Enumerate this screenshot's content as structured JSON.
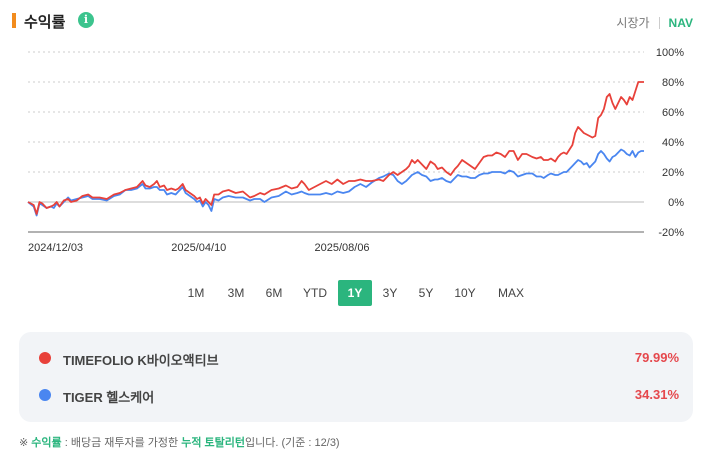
{
  "header": {
    "title": "수익률",
    "info_icon": "info-icon",
    "view_price": "시장가",
    "view_nav": "NAV"
  },
  "periods": [
    "1M",
    "3M",
    "6M",
    "YTD",
    "1Y",
    "3Y",
    "5Y",
    "10Y",
    "MAX"
  ],
  "active_period": "1Y",
  "legend": [
    {
      "name": "TIMEFOLIO K바이오액티브",
      "value": "79.99%",
      "color": "#e8413a"
    },
    {
      "name": "TIGER 헬스케어",
      "value": "34.31%",
      "color": "#4a86f0"
    }
  ],
  "footnote": {
    "mark": "※",
    "term": "수익률",
    "sep": " : ",
    "text1": "배당금 재투자를 가정한 ",
    "term2": "누적 토탈리턴",
    "text2": "입니다. (기준 : 12/3)"
  },
  "chart_data": {
    "type": "line",
    "x_tick_labels": [
      "2024/12/03",
      "2025/04/10",
      "2025/08/06"
    ],
    "y_ticks": [
      "100%",
      "80%",
      "60%",
      "40%",
      "20%",
      "0%",
      "-20%"
    ],
    "ylim": [
      -20,
      100
    ],
    "grid": true,
    "x_unit": "trading-day index (0 = 2024/12/03, 100 = 2025/04/10, 200 = 2025/08/06)",
    "series": [
      {
        "name": "TIMEFOLIO K바이오액티브",
        "color": "#e8413a",
        "points": [
          [
            0,
            0
          ],
          [
            4,
            -2
          ],
          [
            6,
            -8
          ],
          [
            8,
            0
          ],
          [
            10,
            -1
          ],
          [
            13,
            -4
          ],
          [
            16,
            -3
          ],
          [
            18,
            -2
          ],
          [
            20,
            0
          ],
          [
            22,
            -3
          ],
          [
            25,
            1
          ],
          [
            28,
            2
          ],
          [
            30,
            0
          ],
          [
            34,
            1
          ],
          [
            38,
            4
          ],
          [
            42,
            5
          ],
          [
            45,
            3
          ],
          [
            50,
            3
          ],
          [
            55,
            2
          ],
          [
            60,
            5
          ],
          [
            64,
            6
          ],
          [
            68,
            8
          ],
          [
            72,
            9
          ],
          [
            76,
            10
          ],
          [
            80,
            14
          ],
          [
            82,
            11
          ],
          [
            85,
            10
          ],
          [
            88,
            12
          ],
          [
            90,
            14
          ],
          [
            92,
            10
          ],
          [
            95,
            11
          ],
          [
            97,
            8
          ],
          [
            100,
            9
          ],
          [
            103,
            8
          ],
          [
            105,
            9
          ],
          [
            108,
            12
          ],
          [
            110,
            8
          ],
          [
            113,
            6
          ],
          [
            116,
            4
          ],
          [
            118,
            2
          ],
          [
            120,
            3
          ],
          [
            122,
            -1
          ],
          [
            124,
            2
          ],
          [
            126,
            0
          ],
          [
            128,
            -2
          ],
          [
            130,
            5
          ],
          [
            133,
            5
          ],
          [
            136,
            7
          ],
          [
            140,
            8
          ],
          [
            145,
            6
          ],
          [
            150,
            7
          ],
          [
            155,
            3
          ],
          [
            158,
            4
          ],
          [
            162,
            6
          ],
          [
            165,
            5
          ],
          [
            170,
            8
          ],
          [
            175,
            9
          ],
          [
            180,
            11
          ],
          [
            184,
            9
          ],
          [
            188,
            10
          ],
          [
            191,
            14
          ],
          [
            193,
            12
          ],
          [
            196,
            8
          ],
          [
            200,
            10
          ],
          [
            204,
            12
          ],
          [
            208,
            14
          ],
          [
            212,
            12
          ],
          [
            216,
            15
          ],
          [
            220,
            12
          ],
          [
            224,
            14
          ],
          [
            228,
            14
          ],
          [
            232,
            15
          ],
          [
            236,
            14
          ],
          [
            240,
            14
          ],
          [
            245,
            15
          ],
          [
            248,
            14
          ],
          [
            252,
            18
          ],
          [
            255,
            20
          ],
          [
            258,
            18
          ],
          [
            261,
            20
          ],
          [
            264,
            22
          ],
          [
            266,
            24
          ],
          [
            268,
            28
          ],
          [
            270,
            26
          ],
          [
            272,
            28
          ],
          [
            275,
            25
          ],
          [
            278,
            22
          ],
          [
            281,
            27
          ],
          [
            284,
            25
          ],
          [
            286,
            22
          ],
          [
            289,
            23
          ],
          [
            292,
            20
          ],
          [
            295,
            18
          ],
          [
            298,
            22
          ],
          [
            300,
            24
          ],
          [
            303,
            28
          ],
          [
            306,
            26
          ],
          [
            309,
            24
          ],
          [
            312,
            22
          ],
          [
            315,
            26
          ],
          [
            318,
            30
          ],
          [
            321,
            31
          ],
          [
            324,
            31
          ],
          [
            327,
            33
          ],
          [
            330,
            32
          ],
          [
            333,
            30
          ],
          [
            336,
            34
          ],
          [
            339,
            34
          ],
          [
            342,
            28
          ],
          [
            345,
            32
          ],
          [
            348,
            32
          ],
          [
            352,
            30
          ],
          [
            355,
            29
          ],
          [
            358,
            30
          ],
          [
            360,
            28
          ],
          [
            363,
            28
          ],
          [
            365,
            29
          ],
          [
            368,
            27
          ],
          [
            370,
            30
          ],
          [
            372,
            32
          ],
          [
            374,
            33
          ],
          [
            376,
            32
          ],
          [
            378,
            35
          ],
          [
            380,
            38
          ],
          [
            382,
            46
          ],
          [
            384,
            50
          ],
          [
            386,
            48
          ],
          [
            388,
            46
          ],
          [
            390,
            45
          ],
          [
            392,
            44
          ],
          [
            394,
            43
          ],
          [
            396,
            44
          ],
          [
            398,
            56
          ],
          [
            400,
            58
          ],
          [
            402,
            62
          ],
          [
            404,
            70
          ],
          [
            406,
            72
          ],
          [
            408,
            66
          ],
          [
            410,
            62
          ],
          [
            412,
            66
          ],
          [
            414,
            70
          ],
          [
            416,
            68
          ],
          [
            418,
            65
          ],
          [
            420,
            70
          ],
          [
            422,
            68
          ],
          [
            424,
            74
          ],
          [
            426,
            80
          ],
          [
            428,
            80
          ],
          [
            430,
            80
          ]
        ]
      },
      {
        "name": "TIGER 헬스케어",
        "color": "#4a86f0",
        "points": [
          [
            0,
            0
          ],
          [
            4,
            -3
          ],
          [
            6,
            -9
          ],
          [
            8,
            -1
          ],
          [
            10,
            -2
          ],
          [
            13,
            -4
          ],
          [
            16,
            -3
          ],
          [
            18,
            -4
          ],
          [
            20,
            -1
          ],
          [
            22,
            -3
          ],
          [
            25,
            0
          ],
          [
            28,
            3
          ],
          [
            30,
            1
          ],
          [
            34,
            2
          ],
          [
            38,
            3
          ],
          [
            42,
            4
          ],
          [
            45,
            2
          ],
          [
            50,
            2
          ],
          [
            55,
            1
          ],
          [
            60,
            4
          ],
          [
            64,
            5
          ],
          [
            68,
            8
          ],
          [
            72,
            8
          ],
          [
            76,
            9
          ],
          [
            80,
            12
          ],
          [
            82,
            9
          ],
          [
            85,
            9
          ],
          [
            88,
            10
          ],
          [
            90,
            10
          ],
          [
            92,
            8
          ],
          [
            95,
            8
          ],
          [
            97,
            5
          ],
          [
            100,
            6
          ],
          [
            103,
            5
          ],
          [
            105,
            7
          ],
          [
            108,
            10
          ],
          [
            110,
            6
          ],
          [
            113,
            4
          ],
          [
            116,
            2
          ],
          [
            118,
            0
          ],
          [
            120,
            1
          ],
          [
            122,
            -3
          ],
          [
            124,
            0
          ],
          [
            126,
            -2
          ],
          [
            128,
            -6
          ],
          [
            130,
            2
          ],
          [
            133,
            1
          ],
          [
            136,
            3
          ],
          [
            140,
            4
          ],
          [
            145,
            3
          ],
          [
            150,
            3
          ],
          [
            155,
            1
          ],
          [
            158,
            2
          ],
          [
            162,
            2
          ],
          [
            165,
            0
          ],
          [
            170,
            3
          ],
          [
            175,
            4
          ],
          [
            180,
            7
          ],
          [
            184,
            5
          ],
          [
            188,
            6
          ],
          [
            191,
            7
          ],
          [
            193,
            6
          ],
          [
            196,
            5
          ],
          [
            200,
            5
          ],
          [
            204,
            5
          ],
          [
            208,
            6
          ],
          [
            212,
            5
          ],
          [
            216,
            7
          ],
          [
            220,
            6
          ],
          [
            224,
            7
          ],
          [
            228,
            10
          ],
          [
            232,
            12
          ],
          [
            236,
            10
          ],
          [
            240,
            13
          ],
          [
            245,
            16
          ],
          [
            248,
            17
          ],
          [
            252,
            19
          ],
          [
            255,
            18
          ],
          [
            258,
            14
          ],
          [
            261,
            12
          ],
          [
            264,
            14
          ],
          [
            266,
            16
          ],
          [
            268,
            18
          ],
          [
            270,
            19
          ],
          [
            272,
            20
          ],
          [
            275,
            18
          ],
          [
            278,
            17
          ],
          [
            281,
            14
          ],
          [
            284,
            15
          ],
          [
            286,
            15
          ],
          [
            289,
            16
          ],
          [
            292,
            14
          ],
          [
            295,
            13
          ],
          [
            298,
            16
          ],
          [
            300,
            18
          ],
          [
            303,
            17
          ],
          [
            306,
            17
          ],
          [
            309,
            16
          ],
          [
            312,
            16
          ],
          [
            315,
            18
          ],
          [
            318,
            19
          ],
          [
            321,
            19
          ],
          [
            324,
            20
          ],
          [
            327,
            20
          ],
          [
            330,
            20
          ],
          [
            333,
            19
          ],
          [
            336,
            21
          ],
          [
            339,
            20
          ],
          [
            342,
            17
          ],
          [
            345,
            18
          ],
          [
            348,
            19
          ],
          [
            352,
            19
          ],
          [
            355,
            17
          ],
          [
            358,
            17
          ],
          [
            360,
            16
          ],
          [
            363,
            18
          ],
          [
            365,
            19
          ],
          [
            368,
            18
          ],
          [
            370,
            18
          ],
          [
            372,
            19
          ],
          [
            374,
            20
          ],
          [
            376,
            20
          ],
          [
            378,
            22
          ],
          [
            380,
            24
          ],
          [
            382,
            26
          ],
          [
            384,
            28
          ],
          [
            386,
            27
          ],
          [
            388,
            25
          ],
          [
            390,
            26
          ],
          [
            392,
            23
          ],
          [
            394,
            25
          ],
          [
            396,
            27
          ],
          [
            398,
            32
          ],
          [
            400,
            34
          ],
          [
            402,
            32
          ],
          [
            404,
            29
          ],
          [
            406,
            27
          ],
          [
            408,
            30
          ],
          [
            410,
            31
          ],
          [
            412,
            33
          ],
          [
            414,
            35
          ],
          [
            416,
            34
          ],
          [
            418,
            32
          ],
          [
            420,
            31
          ],
          [
            422,
            34
          ],
          [
            424,
            30
          ],
          [
            426,
            33
          ],
          [
            428,
            34
          ],
          [
            430,
            34
          ]
        ]
      }
    ]
  }
}
